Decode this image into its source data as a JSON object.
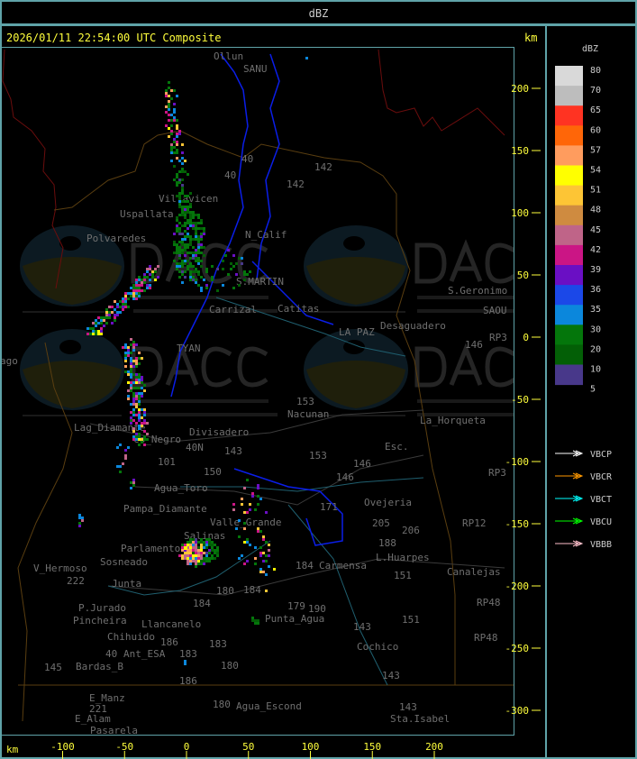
{
  "top_bar": {
    "title": "dBZ"
  },
  "header": {
    "timestamp": "2026/01/11 22:54:00 UTC Composite",
    "unit": "km"
  },
  "axes": {
    "x_unit": "km",
    "x_ticks": [
      "-100",
      "-50",
      "0",
      "50",
      "100",
      "150",
      "200"
    ],
    "y_ticks": [
      "200",
      "150",
      "100",
      "50",
      "0",
      "-50",
      "-100",
      "-150",
      "-200",
      "-250",
      "-300"
    ]
  },
  "legend": {
    "title": "dBZ",
    "levels": [
      "80",
      "70",
      "65",
      "60",
      "57",
      "54",
      "51",
      "48",
      "45",
      "42",
      "39",
      "36",
      "35",
      "30",
      "20",
      "10",
      "5"
    ],
    "colors": [
      "#d9d9d9",
      "#bdbdbd",
      "#ff3322",
      "#ff6608",
      "#ff9c5e",
      "#ffff00",
      "#fdc535",
      "#cf8b40",
      "#bf6488",
      "#cb1585",
      "#6a0fc4",
      "#1b48e8",
      "#0b87dc",
      "#04760b",
      "#035f06",
      "#48388a"
    ],
    "radars": [
      {
        "name": "VBCP",
        "color": "#ffffff"
      },
      {
        "name": "VBCR",
        "color": "#ff9900"
      },
      {
        "name": "VBCT",
        "color": "#00ffff"
      },
      {
        "name": "VBCU",
        "color": "#00ff00"
      },
      {
        "name": "VBBB",
        "color": "#ffc0cb"
      }
    ]
  },
  "watermark": {
    "logo_text": "DACC",
    "line1": "Dirección de Agricultura",
    "line2": "y Contingencias Climáticas",
    "url": "http://www.contingencias.mendoza.gov.ar"
  },
  "places": [
    "Ollun",
    "SANU",
    "Uspallata",
    "Villavicen",
    "Polvaredes",
    "N_Calif",
    "S.MARTIN",
    "Carrizal",
    "Catitas",
    "LA PAZ",
    "Desaguadero",
    "S.Geronimo",
    "SAOU",
    "RP3",
    "TYAN",
    "Nacunan",
    "La_Horqueta",
    "Lag_Diamante",
    "Co_Negro",
    "Divisadero",
    "Esc.",
    "RP3",
    "Agua_Toro",
    "Pampa_Diamante",
    "Valle_Grande",
    "Salinas",
    "Parlamento",
    "Sosneado",
    "V_Hermoso",
    "Junta",
    "P.Jurado",
    "Pincheira",
    "Llancanelo",
    "Chihuido",
    "Ant_ESA",
    "Bardas_B",
    "E_Manz",
    "E_Alam",
    "Pasarela",
    "Agua_Escond",
    "Punta_Agua",
    "Carmensa",
    "L.Huarpes",
    "Canalejas",
    "Ovejeria",
    "Cochico",
    "Sta.Isabel",
    "RP12",
    "RP48",
    "RP48",
    "ago"
  ],
  "routes": [
    "40",
    "40",
    "142",
    "142",
    "146",
    "153",
    "153",
    "146",
    "146",
    "143",
    "101",
    "40N",
    "150",
    "171",
    "205",
    "206",
    "188",
    "151",
    "151",
    "143",
    "143",
    "143",
    "184",
    "179",
    "190",
    "184",
    "180",
    "184",
    "183",
    "180",
    "186",
    "180",
    "145",
    "221",
    "222",
    "40",
    "186",
    "183"
  ]
}
